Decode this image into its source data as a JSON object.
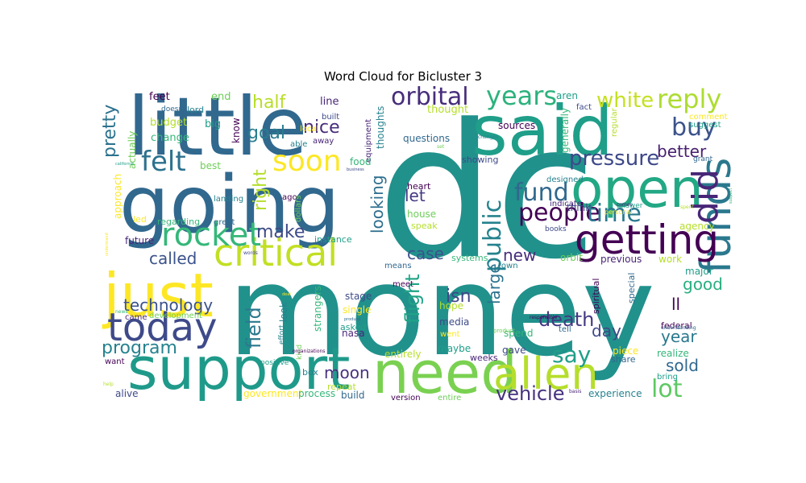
{
  "chart_data": {
    "type": "wordcloud",
    "title": "Word Cloud for Bicluster 3",
    "colormap": "viridis",
    "background": "#ffffff",
    "words": [
      {
        "text": "dc",
        "weight": 1.0,
        "rotate": false,
        "color": "#21918c"
      },
      {
        "text": "money",
        "weight": 0.9,
        "rotate": false,
        "color": "#21918c"
      },
      {
        "text": "little",
        "weight": 0.62,
        "rotate": false,
        "color": "#31688e"
      },
      {
        "text": "going",
        "weight": 0.6,
        "rotate": false,
        "color": "#31688e"
      },
      {
        "text": "said",
        "weight": 0.55,
        "rotate": false,
        "color": "#1f9e89"
      },
      {
        "text": "just",
        "weight": 0.48,
        "rotate": false,
        "color": "#fde725"
      },
      {
        "text": "support",
        "weight": 0.45,
        "rotate": false,
        "color": "#1f9a8a"
      },
      {
        "text": "need",
        "weight": 0.44,
        "rotate": false,
        "color": "#7ad151"
      },
      {
        "text": "open",
        "weight": 0.4,
        "rotate": false,
        "color": "#22a884"
      },
      {
        "text": "allen",
        "weight": 0.33,
        "rotate": false,
        "color": "#b5de2b"
      },
      {
        "text": "funds",
        "weight": 0.32,
        "rotate": true,
        "color": "#2a788e"
      },
      {
        "text": "getting",
        "weight": 0.3,
        "rotate": false,
        "color": "#440154"
      },
      {
        "text": "today",
        "weight": 0.3,
        "rotate": false,
        "color": "#3e4a89"
      },
      {
        "text": "critical",
        "weight": 0.28,
        "rotate": false,
        "color": "#c2df23"
      },
      {
        "text": "did",
        "weight": 0.26,
        "rotate": true,
        "color": "#482677"
      },
      {
        "text": "rocket",
        "weight": 0.24,
        "rotate": false,
        "color": "#35b779"
      },
      {
        "text": "soon",
        "weight": 0.22,
        "rotate": false,
        "color": "#fde725"
      },
      {
        "text": "felt",
        "weight": 0.21,
        "rotate": false,
        "color": "#2c728e"
      },
      {
        "text": "reply",
        "weight": 0.2,
        "rotate": false,
        "color": "#addc30"
      },
      {
        "text": "years",
        "weight": 0.2,
        "rotate": false,
        "color": "#2db27d"
      },
      {
        "text": "orbital",
        "weight": 0.19,
        "rotate": false,
        "color": "#472d7b"
      },
      {
        "text": "buy",
        "weight": 0.19,
        "rotate": false,
        "color": "#3b528b"
      },
      {
        "text": "people",
        "weight": 0.19,
        "rotate": false,
        "color": "#440154"
      },
      {
        "text": "fund",
        "weight": 0.19,
        "rotate": false,
        "color": "#31688e"
      },
      {
        "text": "time",
        "weight": 0.18,
        "rotate": false,
        "color": "#2a788e"
      },
      {
        "text": "public",
        "weight": 0.18,
        "rotate": true,
        "color": "#25838e"
      },
      {
        "text": "lot",
        "weight": 0.18,
        "rotate": false,
        "color": "#5ec962"
      },
      {
        "text": "say",
        "weight": 0.17,
        "rotate": false,
        "color": "#1f9e89"
      },
      {
        "text": "pressure",
        "weight": 0.16,
        "rotate": false,
        "color": "#3e4989"
      },
      {
        "text": "white",
        "weight": 0.15,
        "rotate": false,
        "color": "#c5e021"
      },
      {
        "text": "vehicle",
        "weight": 0.15,
        "rotate": false,
        "color": "#46327e"
      },
      {
        "text": "death",
        "weight": 0.15,
        "rotate": false,
        "color": "#443983"
      },
      {
        "text": "program",
        "weight": 0.14,
        "rotate": false,
        "color": "#26828e"
      },
      {
        "text": "half",
        "weight": 0.14,
        "rotate": false,
        "color": "#b8de29"
      },
      {
        "text": "make",
        "weight": 0.14,
        "rotate": false,
        "color": "#3e4a89"
      },
      {
        "text": "goal",
        "weight": 0.14,
        "rotate": false,
        "color": "#287d8e"
      },
      {
        "text": "nice",
        "weight": 0.14,
        "rotate": false,
        "color": "#472d7b"
      },
      {
        "text": "flight",
        "weight": 0.14,
        "rotate": true,
        "color": "#20a386"
      },
      {
        "text": "field",
        "weight": 0.13,
        "rotate": true,
        "color": "#2a788e"
      },
      {
        "text": "technology",
        "weight": 0.13,
        "rotate": false,
        "color": "#3b528b"
      },
      {
        "text": "pretty",
        "weight": 0.13,
        "rotate": true,
        "color": "#2c728e"
      },
      {
        "text": "right",
        "weight": 0.13,
        "rotate": true,
        "color": "#b5de2b"
      },
      {
        "text": "called",
        "weight": 0.13,
        "rotate": false,
        "color": "#3b528b"
      },
      {
        "text": "let",
        "weight": 0.13,
        "rotate": false,
        "color": "#443a83"
      },
      {
        "text": "better",
        "weight": 0.13,
        "rotate": false,
        "color": "#481f70"
      },
      {
        "text": "good",
        "weight": 0.13,
        "rotate": false,
        "color": "#29af7f"
      },
      {
        "text": "day",
        "weight": 0.13,
        "rotate": false,
        "color": "#3f4788"
      },
      {
        "text": "year",
        "weight": 0.13,
        "rotate": false,
        "color": "#2a788e"
      },
      {
        "text": "sold",
        "weight": 0.13,
        "rotate": false,
        "color": "#31688e"
      },
      {
        "text": "moon",
        "weight": 0.13,
        "rotate": false,
        "color": "#46327e"
      },
      {
        "text": "isn",
        "weight": 0.13,
        "rotate": false,
        "color": "#404688"
      },
      {
        "text": "new",
        "weight": 0.12,
        "rotate": false,
        "color": "#472d7b"
      },
      {
        "text": "case",
        "weight": 0.12,
        "rotate": false,
        "color": "#3b528b"
      },
      {
        "text": "looking",
        "weight": 0.12,
        "rotate": true,
        "color": "#2e6f8e"
      },
      {
        "text": "large",
        "weight": 0.12,
        "rotate": true,
        "color": "#2c728e"
      },
      {
        "text": "ll",
        "weight": 0.12,
        "rotate": false,
        "color": "#440154"
      }
    ],
    "small_words": [
      "feet",
      "end",
      "lord",
      "line",
      "budget",
      "big",
      "built",
      "local",
      "change",
      "doesn",
      "know",
      "actually",
      "thoughts",
      "equipment",
      "thought",
      "aren",
      "fact",
      "comment",
      "generally",
      "questions",
      "sources",
      "best",
      "able",
      "away",
      "regular",
      "suggest",
      "showing",
      "approach",
      "food",
      "grant",
      "heart",
      "house",
      "designed",
      "indicate",
      "speak",
      "answer",
      "think",
      "led",
      "regarding",
      "great",
      "ago",
      "dollars",
      "landing",
      "future",
      "agency",
      "instance",
      "books",
      "personal",
      "systems",
      "means",
      "meet",
      "orbit",
      "town",
      "previous",
      "work",
      "major",
      "stage",
      "single",
      "strangers",
      "special",
      "spiritual",
      "development",
      "look",
      "came",
      "hope",
      "asked",
      "media",
      "went",
      "spend",
      "tell",
      "federal",
      "product",
      "effort",
      "nasa",
      "entirely",
      "maybe",
      "gave",
      "piece",
      "realize",
      "share",
      "want",
      "kind",
      "box",
      "weeks",
      "repeat",
      "bring",
      "alive",
      "government",
      "process",
      "build",
      "version",
      "entire",
      "experience",
      "basis",
      "help",
      "positive",
      "words",
      "deal",
      "news",
      "produce",
      "responsible",
      "set",
      "changes",
      "comes",
      "spent",
      "california",
      "business",
      "understand",
      "suspect",
      "understanding",
      "organizations",
      "site"
    ]
  }
}
